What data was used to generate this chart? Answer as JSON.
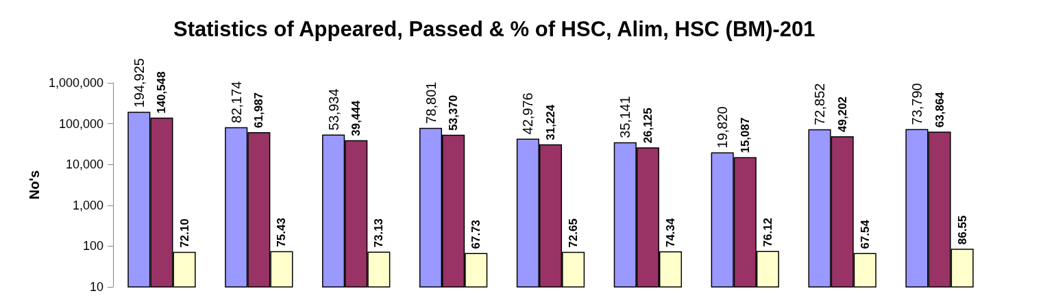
{
  "chart_data": {
    "type": "bar",
    "title": "Statistics of Appeared, Passed & % of HSC, Alim, HSC (BM)-201",
    "ylabel": "No's",
    "categories": [
      null,
      null,
      null,
      null,
      null,
      null,
      null,
      null,
      null
    ],
    "series": [
      {
        "color": "#9999ff",
        "values": [
          194925,
          82174,
          53934,
          78801,
          42976,
          35141,
          19820,
          72852,
          73790
        ],
        "value_labels": [
          "194,925",
          "82,174",
          "53,934",
          "78,801",
          "42,976",
          "35,141",
          "19,820",
          "72,852",
          "73,790"
        ]
      },
      {
        "color": "#993366",
        "values": [
          140548,
          61987,
          39444,
          53370,
          31224,
          26125,
          15087,
          49202,
          63864
        ],
        "value_labels": [
          "140,548",
          "61,987",
          "39,444",
          "53,370",
          "31,224",
          "26,125",
          "15,087",
          "49,202",
          "63,864"
        ]
      },
      {
        "color": "#ffffcc",
        "values": [
          72.1,
          75.43,
          73.13,
          67.73,
          72.65,
          74.34,
          76.12,
          67.54,
          86.55
        ],
        "value_labels": [
          "72.10",
          "75.43",
          "73.13",
          "67.73",
          "72.65",
          "74.34",
          "76.12",
          "67.54",
          "86.55"
        ]
      }
    ],
    "log": true,
    "ylim": [
      10,
      1000000
    ],
    "yticks": [
      {
        "value": 10,
        "label": "10"
      },
      {
        "value": 100,
        "label": "100"
      },
      {
        "value": 1000,
        "label": "1,000"
      },
      {
        "value": 10000,
        "label": "10,000"
      },
      {
        "value": 100000,
        "label": "100,000"
      },
      {
        "value": 1000000,
        "label": "1,000,000"
      }
    ],
    "grid": false
  }
}
